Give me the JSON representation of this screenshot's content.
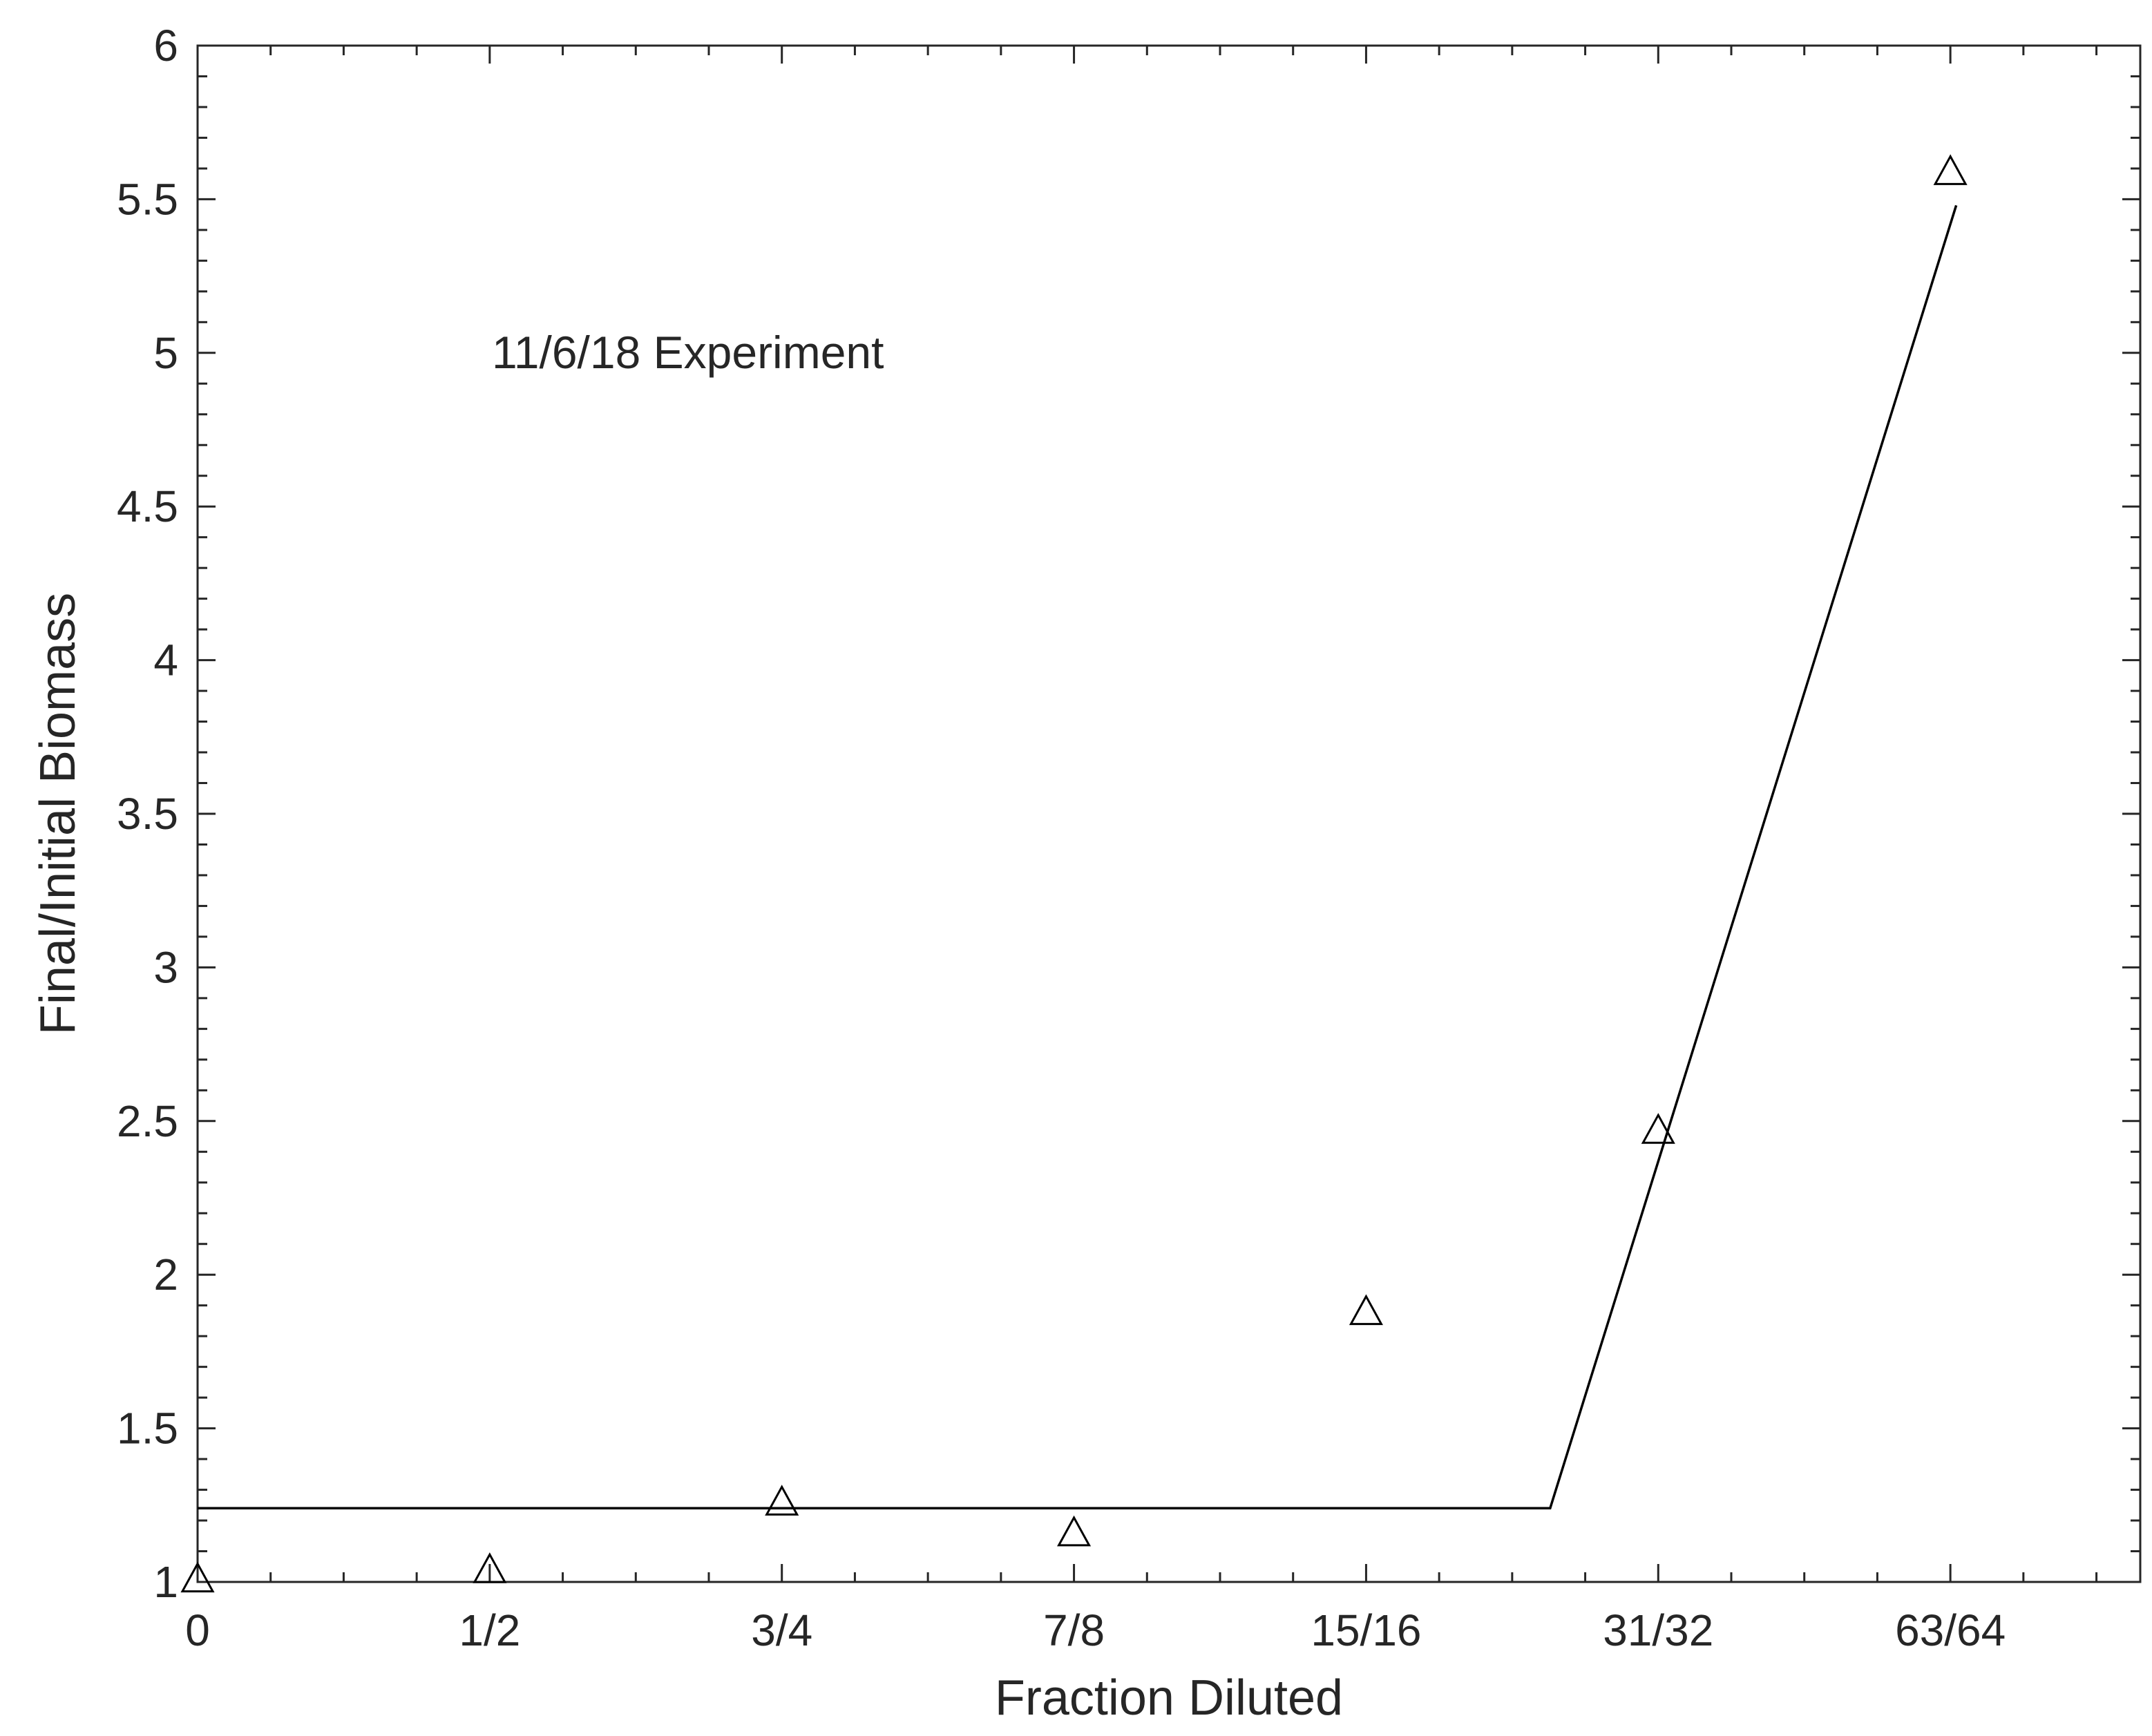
{
  "chart_data": {
    "type": "scatter",
    "title": "",
    "annotation": "11/6/18 Experiment",
    "xlabel": "Fraction Diluted",
    "ylabel": "Final/Initial Biomass",
    "x_tick_labels": [
      "0",
      "1/2",
      "3/4",
      "7/8",
      "15/16",
      "31/32",
      "63/64"
    ],
    "y_ticks": [
      1,
      1.5,
      2,
      2.5,
      3,
      3.5,
      4,
      4.5,
      5,
      5.5,
      6
    ],
    "y_tick_labels": [
      "1",
      "1.5",
      "2",
      "2.5",
      "3",
      "3.5",
      "4",
      "4.5",
      "5",
      "5.5",
      "6"
    ],
    "xlim": [
      0,
      6.65
    ],
    "ylim": [
      1,
      6
    ],
    "grid": false,
    "legend": "none",
    "series": [
      {
        "kind": "markers",
        "marker": "triangle",
        "x": [
          0,
          1,
          2,
          3,
          4,
          5,
          6
        ],
        "y": [
          1.0,
          1.03,
          1.25,
          1.15,
          1.87,
          2.46,
          5.58
        ]
      },
      {
        "kind": "line",
        "x": [
          0,
          4.63,
          6.02
        ],
        "y": [
          1.24,
          1.24,
          5.48
        ]
      }
    ],
    "colors": {
      "axis": "#262626",
      "marks": "#000000",
      "background": "#ffffff"
    }
  }
}
